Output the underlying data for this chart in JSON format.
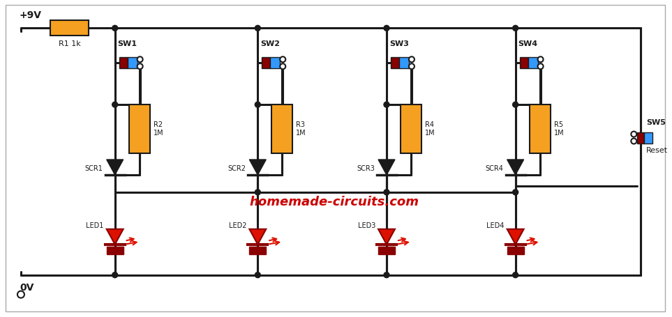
{
  "bg_color": "#ffffff",
  "wire_color": "#1a1a1a",
  "orange_color": "#f5a020",
  "red_color": "#cc2200",
  "blue_color": "#3399ff",
  "dark_red": "#880000",
  "scr_color": "#1a1a1a",
  "led_red": "#dd1100",
  "led_dark": "#8b0000",
  "title": "homemade-circuits.com",
  "title_color": "#cc0000",
  "title_fontsize": 13,
  "wire_lw": 2.2,
  "fig_w": 9.63,
  "fig_h": 4.55,
  "dpi": 100,
  "labels": {
    "plus9v": "+9V",
    "r1": "R1 1k",
    "r2": "R2\n1M",
    "r3": "R3\n1M",
    "r4": "R4\n1M",
    "r5": "R5\n1M",
    "sw1": "SW1",
    "sw2": "SW2",
    "sw3": "SW3",
    "sw4": "SW4",
    "sw5": "SW5",
    "reset": "Reset",
    "scr1": "SCR1",
    "scr2": "SCR2",
    "scr3": "SCR3",
    "scr4": "SCR4",
    "led1": "LED1",
    "led2": "LED2",
    "led3": "LED3",
    "led4": "LED4",
    "ov": "0V"
  }
}
